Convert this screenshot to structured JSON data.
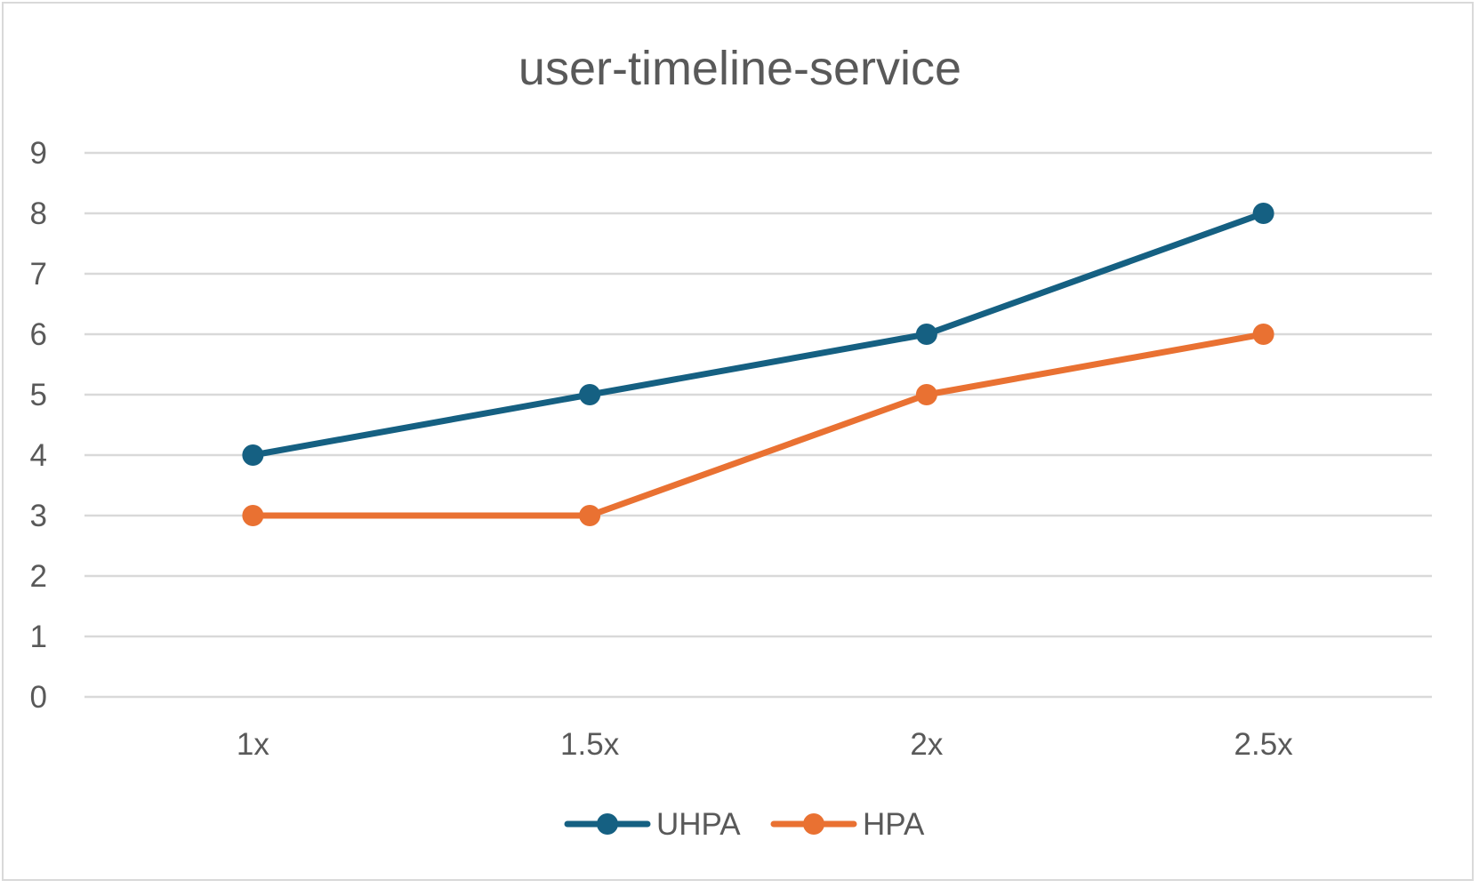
{
  "chart_data": {
    "type": "line",
    "title": "user-timeline-service",
    "xlabel": "",
    "ylabel": "",
    "categories": [
      "1x",
      "1.5x",
      "2x",
      "2.5x"
    ],
    "ylim": [
      0,
      9
    ],
    "yticks": [
      0,
      1,
      2,
      3,
      4,
      5,
      6,
      7,
      8,
      9
    ],
    "grid": true,
    "legend_position": "bottom",
    "series": [
      {
        "name": "UHPA",
        "color": "#156082",
        "values": [
          4,
          5,
          6,
          8
        ]
      },
      {
        "name": "HPA",
        "color": "#e97132",
        "values": [
          3,
          3,
          5,
          6
        ]
      }
    ]
  }
}
